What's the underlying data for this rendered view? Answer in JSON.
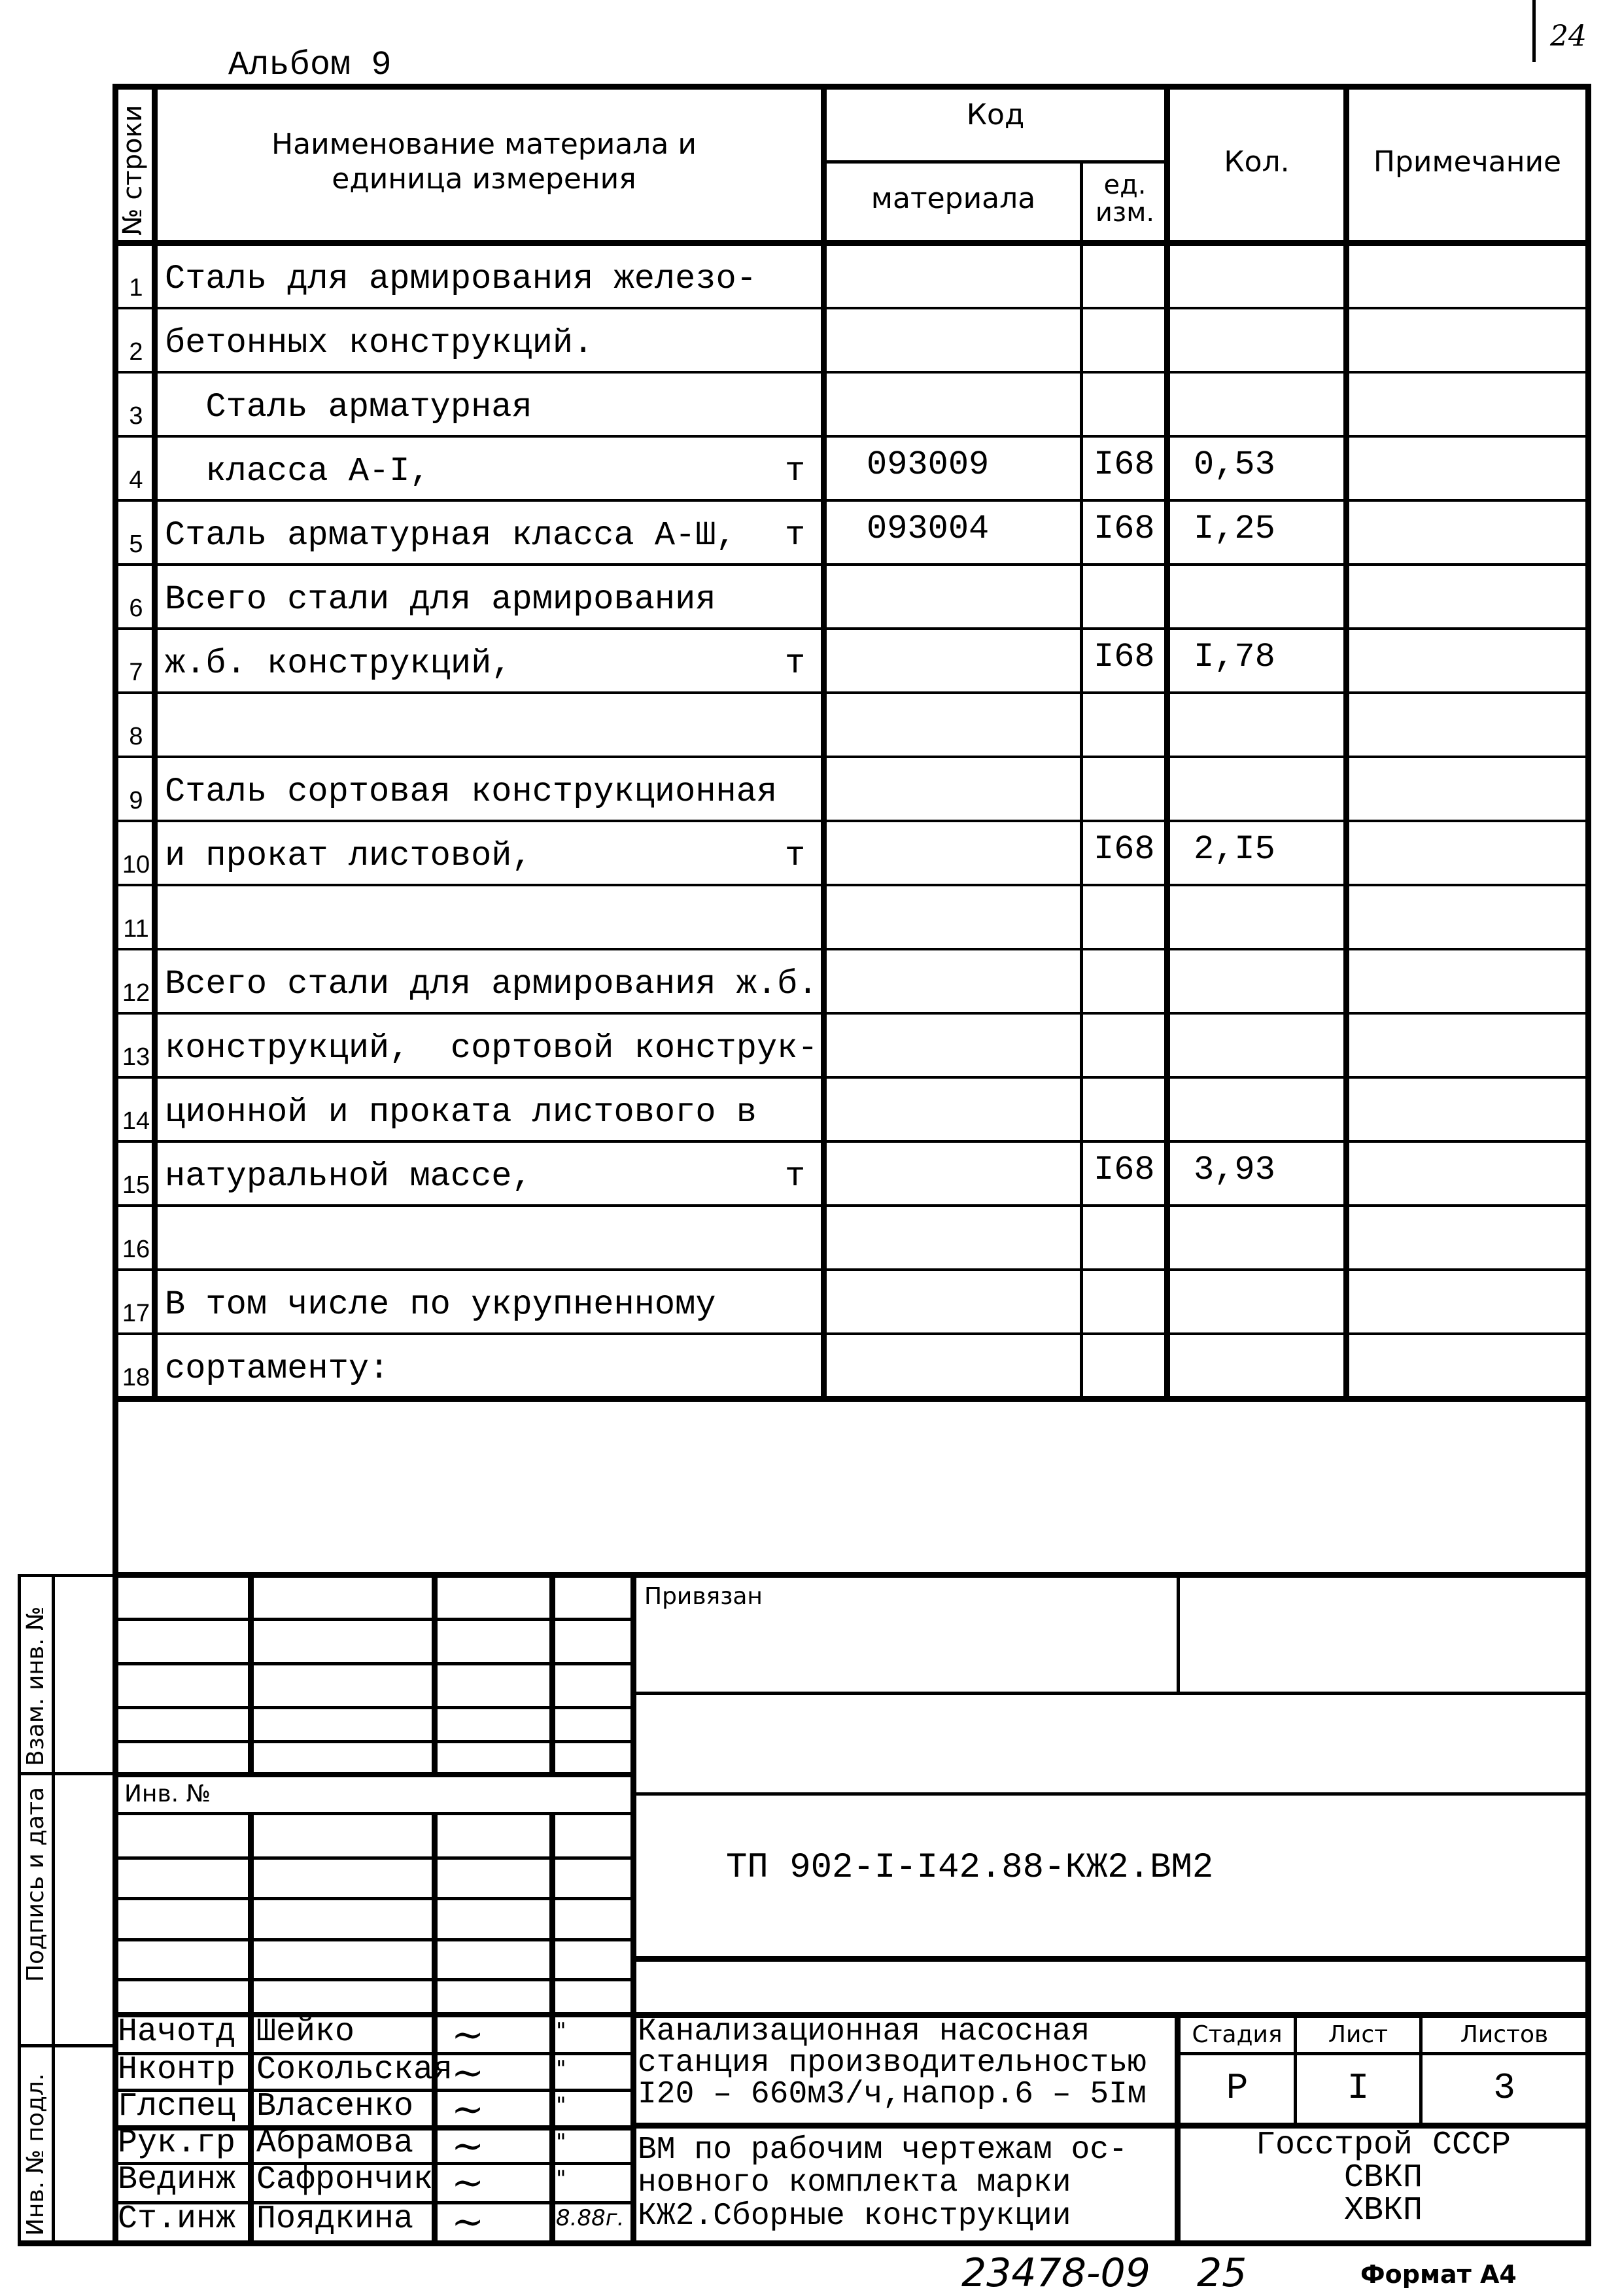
{
  "album": "Альбом 9",
  "page_mark": "24",
  "table": {
    "headers": {
      "row_no": "№ строки",
      "name": "Наименование материала и единица измерения",
      "code": "Код",
      "code_material": "материала",
      "code_unit": "ед. изм.",
      "qty": "Кол.",
      "note": "Примечание"
    },
    "rows": [
      {
        "n": "1",
        "name": "Сталь для армирования железо-",
        "unit": "",
        "code": "",
        "ed": "",
        "qty": ""
      },
      {
        "n": "2",
        "name": "бетонных конструкций.",
        "unit": "",
        "code": "",
        "ed": "",
        "qty": ""
      },
      {
        "n": "3",
        "name": "  Сталь арматурная",
        "unit": "",
        "code": "",
        "ed": "",
        "qty": ""
      },
      {
        "n": "4",
        "name": "  класса А-I,",
        "unit": "т",
        "code": "093009",
        "ed": "I68",
        "qty": "0,53"
      },
      {
        "n": "5",
        "name": "Сталь арматурная класса А-Ш,",
        "unit": "т",
        "code": "093004",
        "ed": "I68",
        "qty": "I,25"
      },
      {
        "n": "6",
        "name": "Всего стали для армирования",
        "unit": "",
        "code": "",
        "ed": "",
        "qty": ""
      },
      {
        "n": "7",
        "name": "ж.б. конструкций,",
        "unit": "т",
        "code": "",
        "ed": "I68",
        "qty": "I,78"
      },
      {
        "n": "8",
        "name": "",
        "unit": "",
        "code": "",
        "ed": "",
        "qty": ""
      },
      {
        "n": "9",
        "name": "Сталь сортовая конструкционная",
        "unit": "",
        "code": "",
        "ed": "",
        "qty": ""
      },
      {
        "n": "10",
        "name": "и прокат листовой,",
        "unit": "т",
        "code": "",
        "ed": "I68",
        "qty": "2,I5"
      },
      {
        "n": "11",
        "name": "",
        "unit": "",
        "code": "",
        "ed": "",
        "qty": ""
      },
      {
        "n": "12",
        "name": "Всего стали для армирования ж.б.",
        "unit": "",
        "code": "",
        "ed": "",
        "qty": ""
      },
      {
        "n": "13",
        "name": "конструкций,  сортовой конструк-",
        "unit": "",
        "code": "",
        "ed": "",
        "qty": ""
      },
      {
        "n": "14",
        "name": "ционной и проката листового в",
        "unit": "",
        "code": "",
        "ed": "",
        "qty": ""
      },
      {
        "n": "15",
        "name": "натуральной массе,",
        "unit": "т",
        "code": "",
        "ed": "I68",
        "qty": "3,93"
      },
      {
        "n": "16",
        "name": "",
        "unit": "",
        "code": "",
        "ed": "",
        "qty": ""
      },
      {
        "n": "17",
        "name": "В том числе по укрупненному",
        "unit": "",
        "code": "",
        "ed": "",
        "qty": ""
      },
      {
        "n": "18",
        "name": "сортаменту:",
        "unit": "",
        "code": "",
        "ed": "",
        "qty": ""
      }
    ]
  },
  "side": {
    "vzam": "Взам. инв. №",
    "podpis": "Подпись и дата",
    "inv_podl": "Инв. № подл."
  },
  "stamp": {
    "privyazan": "Привязан",
    "inv_no": "Инв. №",
    "doc_code": "ТП 902-I-I42.88-КЖ2.ВМ2",
    "people": [
      {
        "role": "Начотд",
        "name": "Шейко",
        "date": "\""
      },
      {
        "role": "Нконтр",
        "name": "Сокольская",
        "date": "\""
      },
      {
        "role": "Глспец",
        "name": "Власенко",
        "date": "\""
      },
      {
        "role": "Рук.гр",
        "name": "Абрамова",
        "date": "\""
      },
      {
        "role": "Вединж",
        "name": "Сафрончик",
        "date": "\""
      },
      {
        "role": "Ст.инж",
        "name": "Поядкина",
        "date": "8.88г."
      }
    ],
    "title_lines": [
      "Канализационная насосная",
      "станция производительностью",
      "I20 – 660м3/ч,напор.6 – 5Iм"
    ],
    "stage_label": "Стадия",
    "sheet_label": "Лист",
    "sheets_label": "Листов",
    "stage": "Р",
    "sheet": "I",
    "sheets": "3",
    "desc_lines": [
      "ВМ по рабочим чертежам ос-",
      "новного комплекта марки",
      "КЖ2.Сборные конструкции"
    ],
    "org_lines": [
      "Госстрой СССР",
      "СВКП",
      "ХВКП"
    ]
  },
  "footer": {
    "inv": "23478-09",
    "page": "25",
    "format": "Формат А4"
  }
}
